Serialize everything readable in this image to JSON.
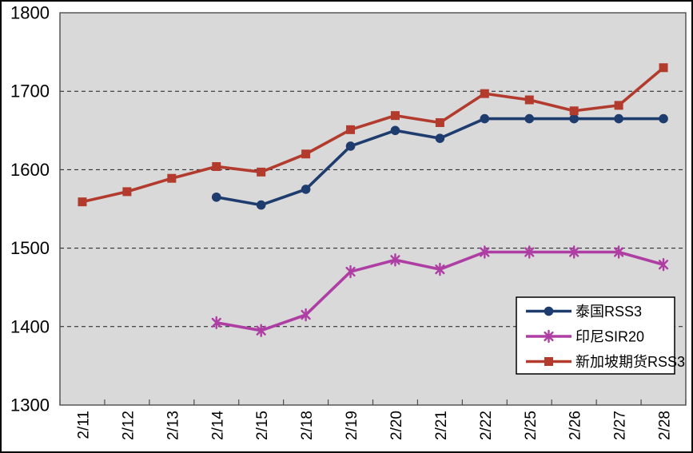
{
  "chart_data": {
    "type": "line",
    "title": "",
    "xlabel": "",
    "ylabel": "",
    "ylim": [
      1300,
      1800
    ],
    "y_tick_interval": 100,
    "y_ticks": [
      1800,
      1700,
      1600,
      1500,
      1400,
      1300
    ],
    "grid": "horizontal-dashed",
    "plot_bg": "#D9D9D9",
    "legend_position": "inside-bottom-right",
    "categories": [
      "2/11",
      "2/12",
      "2/13",
      "2/14",
      "2/15",
      "2/18",
      "2/19",
      "2/20",
      "2/21",
      "2/22",
      "2/25",
      "2/26",
      "2/27",
      "2/28"
    ],
    "series": [
      {
        "id": "thailand-rss3",
        "name": "泰国RSS3",
        "color": "#1E3C6E",
        "marker": "circle",
        "values": [
          null,
          null,
          null,
          1565,
          1555,
          1575,
          1630,
          1650,
          1640,
          1665,
          1665,
          1665,
          1665,
          1665
        ]
      },
      {
        "id": "indonesia-sir20",
        "name": "印尼SIR20",
        "color": "#AE3EA4",
        "marker": "star",
        "values": [
          null,
          null,
          null,
          1405,
          1395,
          1415,
          1470,
          1485,
          1473,
          1495,
          1495,
          1495,
          1495,
          1479
        ]
      },
      {
        "id": "singapore-futures-rss3",
        "name": "新加坡期货RSS3",
        "color": "#B23B2E",
        "marker": "square",
        "values": [
          1559,
          1572,
          1589,
          1604,
          1597,
          1620,
          1651,
          1669,
          1660,
          1697,
          1689,
          1675,
          1682,
          1730
        ]
      }
    ]
  }
}
